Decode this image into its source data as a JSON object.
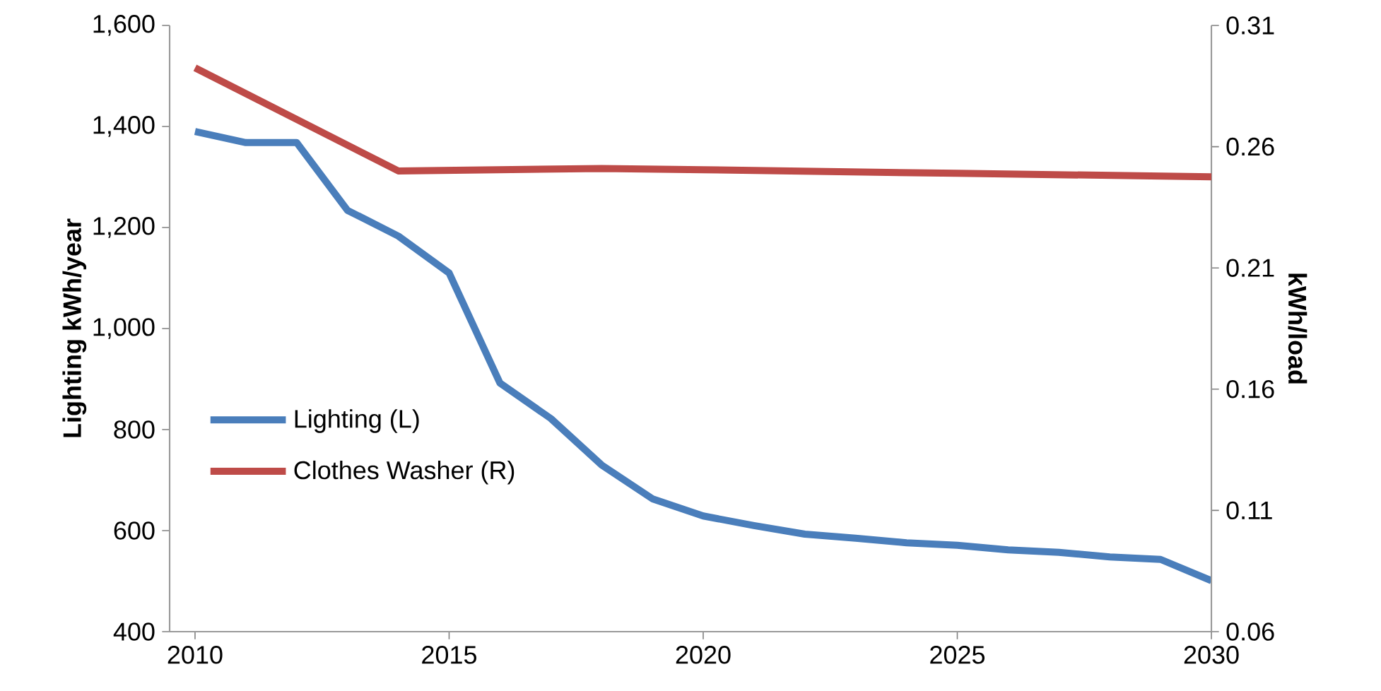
{
  "chart_data": {
    "type": "line",
    "ylabel": "Lighting kWh/year",
    "y2label": "kWh/load",
    "xlim": [
      2009.5,
      2030
    ],
    "xticks": [
      2010,
      2015,
      2020,
      2025,
      2030
    ],
    "ylim": [
      400,
      1600
    ],
    "yticks": [
      400,
      600,
      800,
      {
        "value": 1000,
        "label": "1,000"
      },
      {
        "value": 1200,
        "label": "1,200"
      },
      {
        "value": 1400,
        "label": "1,400"
      },
      {
        "value": 1600,
        "label": "1,600"
      }
    ],
    "y2lim": [
      0.06,
      0.31
    ],
    "y2ticks": [
      0.06,
      0.11,
      0.16,
      0.21,
      0.26,
      0.31
    ],
    "legend": "left",
    "marker": "none",
    "line_style": "solid",
    "series": [
      {
        "name": "Lighting (L)",
        "color": "#4a7ebb",
        "x": [
          2010,
          2011,
          2012,
          2013,
          2014,
          2015,
          2016,
          2017,
          2018,
          2019,
          2020,
          2021,
          2022,
          2023,
          2024,
          2025,
          2026,
          2027,
          2028,
          2029,
          2030
        ],
        "values": [
          1390,
          1368,
          1368,
          1234,
          1183,
          1110,
          892,
          822,
          730,
          663,
          629,
          610,
          593,
          585,
          576,
          571,
          562,
          557,
          548,
          543,
          501
        ]
      },
      {
        "name": "Clothes Washer (R)",
        "color": "#be4b48",
        "axis": "y2",
        "x": [
          2010,
          2014,
          2018,
          2020,
          2025,
          2030
        ],
        "values": [
          0.2925,
          0.25,
          0.251,
          0.2505,
          0.249,
          0.2476
        ]
      }
    ]
  }
}
